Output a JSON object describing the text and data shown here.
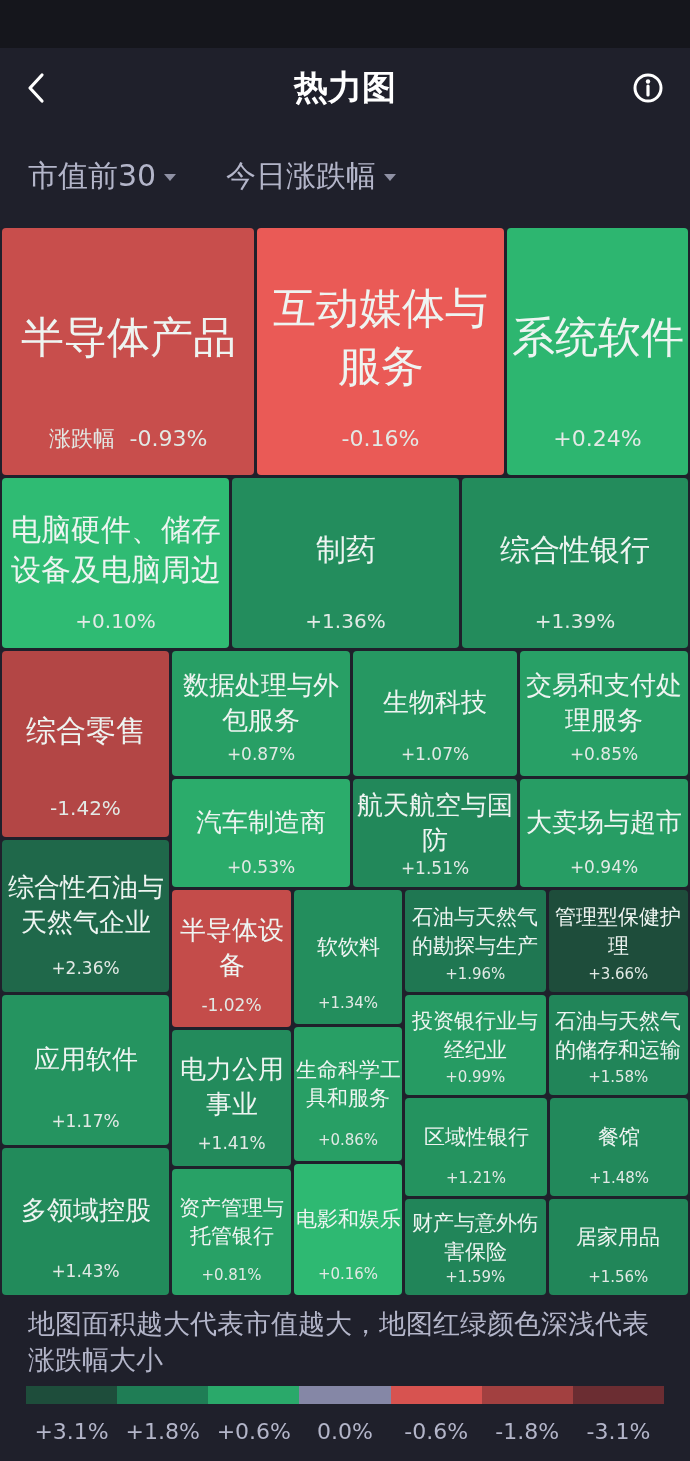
{
  "chart_data": [
    {
      "type": "other",
      "title": "热力图",
      "annotations": [
        "市值前30",
        "今日涨跌幅"
      ],
      "categories": [
        "半导体产品",
        "互动媒体与服务",
        "系统软件",
        "电脑硬件、储存设备及电脑周边",
        "制药",
        "综合性银行",
        "综合零售",
        "数据处理与外包服务",
        "生物科技",
        "交易和支付处理服务",
        "汽车制造商",
        "航天航空与国防",
        "大卖场与超市",
        "综合性石油与天然气企业",
        "半导体设备",
        "软饮料",
        "石油与天然气的勘探与生产",
        "管理型保健护理",
        "投资银行业与经纪业",
        "石油与天然气的储存和运输",
        "应用软件",
        "电力公用事业",
        "生命科学工具和服务",
        "区域性银行",
        "餐馆",
        "多领域控股",
        "资产管理与托管银行",
        "电影和娱乐",
        "财产与意外伤害保险",
        "居家用品"
      ],
      "values": [
        -0.93,
        -0.16,
        0.24,
        0.1,
        1.36,
        1.39,
        -1.42,
        0.87,
        1.07,
        0.85,
        0.53,
        1.51,
        0.94,
        2.36,
        -1.02,
        1.34,
        1.96,
        3.66,
        0.99,
        1.58,
        1.17,
        1.41,
        0.86,
        1.21,
        1.48,
        1.43,
        0.81,
        0.16,
        1.59,
        1.56
      ],
      "value_labels": [
        "涨跌幅 -0.93%",
        "-0.16%",
        "+0.24%",
        "+0.10%",
        "+1.36%",
        "+1.39%",
        "-1.42%",
        "+0.87%",
        "+1.07%",
        "+0.85%",
        "+0.53%",
        "+1.51%",
        "+0.94%",
        "+2.36%",
        "-1.02%",
        "+1.34%",
        "+1.96%",
        "+3.66%",
        "+0.99%",
        "+1.58%",
        "+1.17%",
        "+1.41%",
        "+0.86%",
        "+1.21%",
        "+1.48%",
        "+1.43%",
        "+0.81%",
        "+0.16%",
        "+1.59%",
        "+1.56%"
      ]
    },
    {
      "type": "other",
      "annotations": [
        "地图面积越大代表市值越大，地图红绿颜色深浅代表涨跌幅大小"
      ],
      "values": [
        3.1,
        1.8,
        0.6,
        0,
        -0.6,
        -1.8,
        -3.1
      ],
      "value_labels": [
        "+3.1%",
        "+1.8%",
        "+0.6%",
        "0.0%",
        "-0.6%",
        "-1.8%",
        "-3.1%"
      ],
      "colors": [
        "#1e4d3b",
        "#1f7d55",
        "#2aa96a",
        "#8587a6",
        "#d75350",
        "#a24040",
        "#6b2d32"
      ]
    }
  ]
}
